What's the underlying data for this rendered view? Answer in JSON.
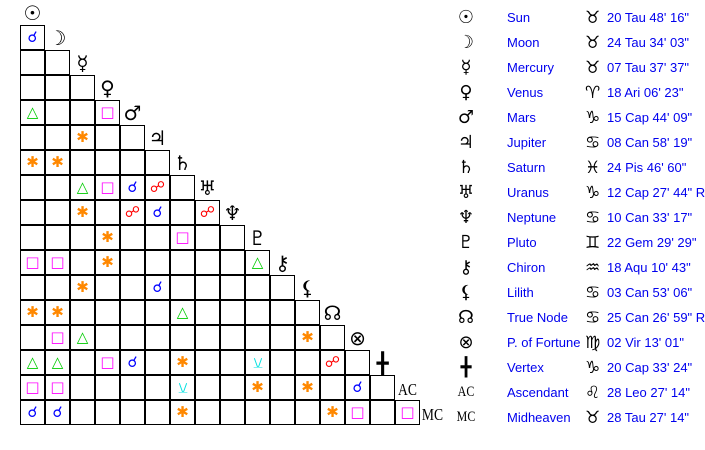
{
  "aspect_styles": {
    "conjunction": {
      "glyph": "☌",
      "color": "#0000ff"
    },
    "opposition": {
      "glyph": "☍",
      "color": "#ff0000"
    },
    "trine": {
      "glyph": "△",
      "color": "#00cc00"
    },
    "square": {
      "glyph": "□",
      "color": "#ff00ff"
    },
    "sextile": {
      "glyph": "✱",
      "color": "#ff8800"
    },
    "quincunx": {
      "glyph": "⚻",
      "color": "#00e0e0"
    }
  },
  "points": [
    {
      "glyph": "☉",
      "name": "Sun",
      "sign": "♉",
      "position": "20 Tau 48' 16\""
    },
    {
      "glyph": "☽",
      "name": "Moon",
      "sign": "♉",
      "position": "24 Tau 34' 03\""
    },
    {
      "glyph": "☿",
      "name": "Mercury",
      "sign": "♉",
      "position": "07 Tau 37' 37\""
    },
    {
      "glyph": "♀",
      "name": "Venus",
      "sign": "♈",
      "position": "18 Ari 06' 23\""
    },
    {
      "glyph": "♂",
      "name": "Mars",
      "sign": "♑",
      "position": "15 Cap 44' 09\""
    },
    {
      "glyph": "♃",
      "name": "Jupiter",
      "sign": "♋",
      "position": "08 Can 58' 19\""
    },
    {
      "glyph": "♄",
      "name": "Saturn",
      "sign": "♓",
      "position": "24 Pis 46' 60\""
    },
    {
      "glyph": "♅",
      "name": "Uranus",
      "sign": "♑",
      "position": "12 Cap 27' 44\" R"
    },
    {
      "glyph": "♆",
      "name": "Neptune",
      "sign": "♋",
      "position": "10 Can 33' 17\""
    },
    {
      "glyph": "♇",
      "name": "Pluto",
      "sign": "♊",
      "position": "22 Gem 29' 29\""
    },
    {
      "glyph": "⚷",
      "name": "Chiron",
      "sign": "♒",
      "position": "18 Aqu 10' 43\""
    },
    {
      "glyph": "⚸",
      "name": "Lilith",
      "sign": "♋",
      "position": "03 Can 53' 06\""
    },
    {
      "glyph": "☊",
      "name": "True Node",
      "sign": "♋",
      "position": "25 Can 26' 59\" R"
    },
    {
      "glyph": "⊗",
      "name": "P. of Fortune",
      "sign": "♍",
      "position": "02 Vir 13' 01\""
    },
    {
      "glyph": "╋",
      "name": "Vertex",
      "sign": "♑",
      "position": "20 Cap 33' 24\""
    },
    {
      "glyph": "AC",
      "name": "Ascendant",
      "sign": "♌",
      "position": "28 Leo 27' 14\""
    },
    {
      "glyph": "MC",
      "name": "Midheaven",
      "sign": "♉",
      "position": "28 Tau 27' 14\""
    }
  ],
  "aspects": {
    "Moon": {
      "Sun": "conjunction"
    },
    "Mars": {
      "Sun": "trine",
      "Venus": "square"
    },
    "Jupiter": {
      "Mercury": "sextile"
    },
    "Saturn": {
      "Sun": "sextile",
      "Moon": "sextile"
    },
    "Uranus": {
      "Mercury": "trine",
      "Venus": "square",
      "Mars": "conjunction",
      "Jupiter": "opposition"
    },
    "Neptune": {
      "Mercury": "sextile",
      "Mars": "opposition",
      "Jupiter": "conjunction",
      "Uranus": "opposition"
    },
    "Pluto": {
      "Venus": "sextile",
      "Saturn": "square"
    },
    "Chiron": {
      "Sun": "square",
      "Moon": "square",
      "Venus": "sextile",
      "Pluto": "trine"
    },
    "Lilith": {
      "Mercury": "sextile",
      "Jupiter": "conjunction"
    },
    "True Node": {
      "Sun": "sextile",
      "Moon": "sextile",
      "Saturn": "trine"
    },
    "P. of Fortune": {
      "Moon": "square",
      "Mercury": "trine",
      "Lilith": "sextile"
    },
    "Vertex": {
      "Sun": "trine",
      "Moon": "trine",
      "Venus": "square",
      "Mars": "conjunction",
      "Saturn": "sextile",
      "Pluto": "quincunx",
      "True Node": "opposition"
    },
    "Ascendant": {
      "Sun": "square",
      "Moon": "square",
      "Saturn": "quincunx",
      "Pluto": "sextile",
      "Lilith": "sextile",
      "P. of Fortune": "conjunction"
    },
    "Midheaven": {
      "Sun": "conjunction",
      "Moon": "conjunction",
      "Saturn": "sextile",
      "True Node": "sextile",
      "P. of Fortune": "square",
      "Ascendant": "square"
    }
  }
}
